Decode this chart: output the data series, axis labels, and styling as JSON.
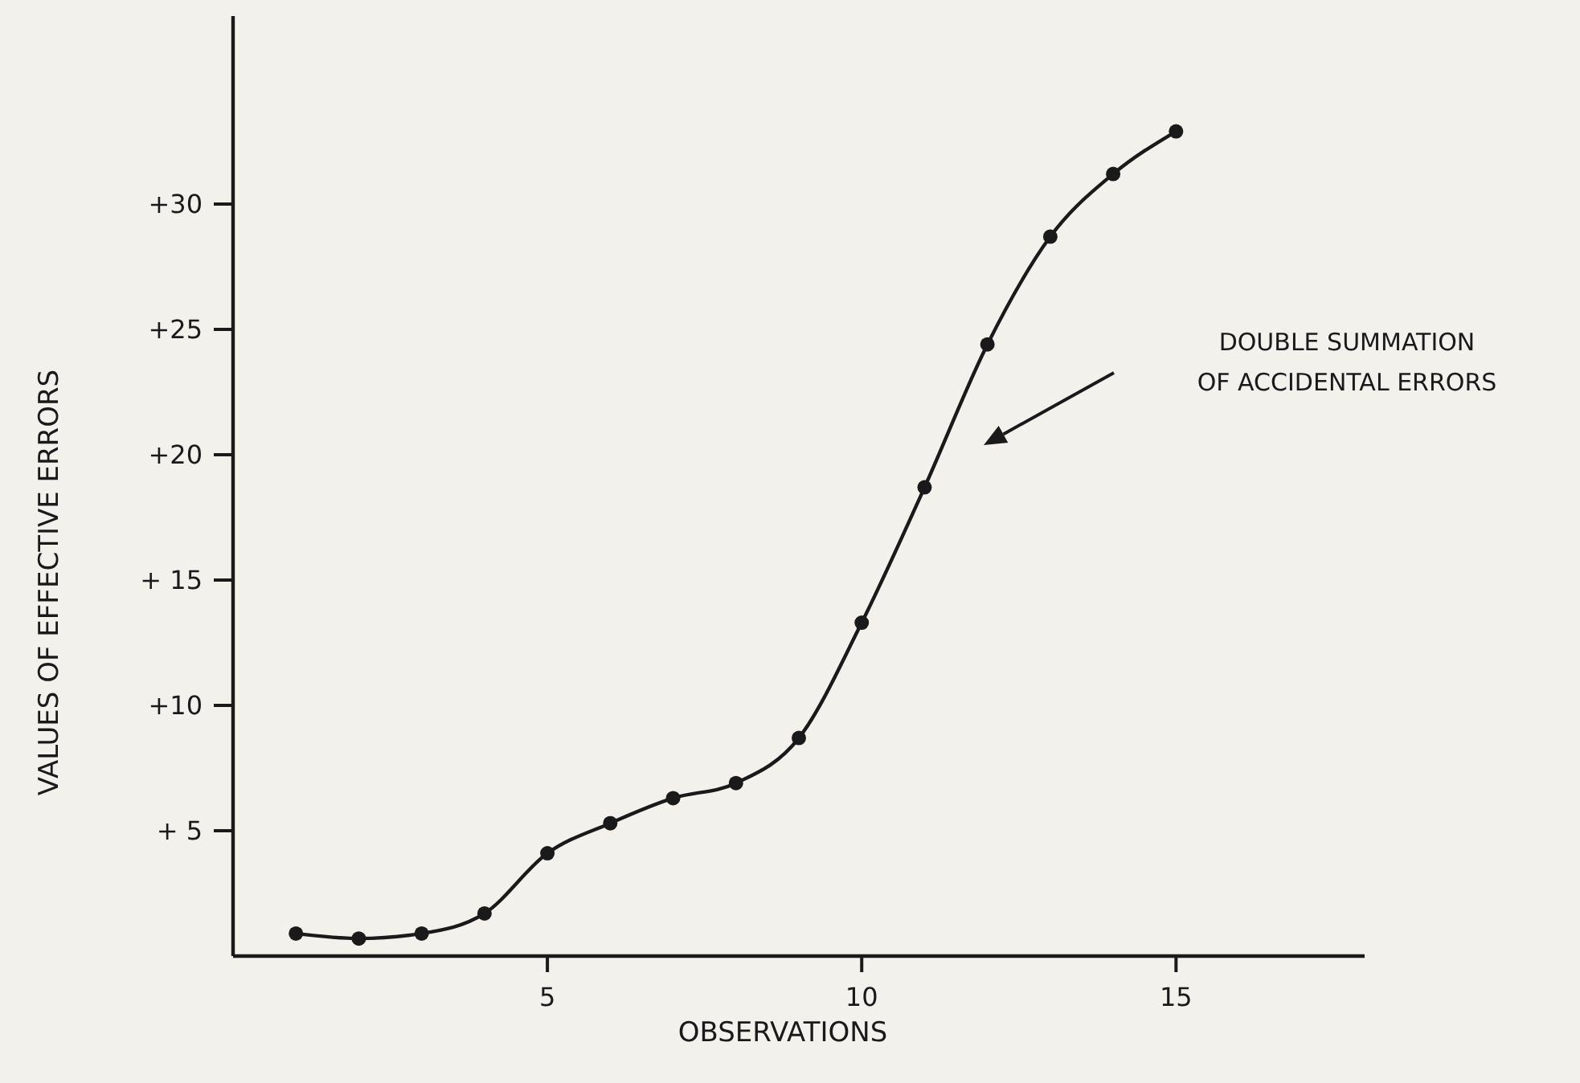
{
  "chart_data": {
    "type": "line",
    "xlabel": "OBSERVATIONS",
    "ylabel": "VALUES OF EFFECTIVE ERRORS",
    "x": [
      1,
      2,
      3,
      4,
      5,
      6,
      7,
      8,
      9,
      10,
      11,
      12,
      13,
      14,
      15
    ],
    "series": [
      {
        "color": "#1a1a1a",
        "values": [
          0.9,
          0.7,
          0.9,
          1.7,
          4.1,
          5.3,
          6.3,
          6.9,
          8.7,
          13.3,
          18.7,
          24.4,
          28.7,
          31.2,
          32.9
        ]
      }
    ],
    "xlim": [
      0,
      18
    ],
    "xticks": [
      5,
      10,
      15
    ],
    "ylim": [
      0,
      37.5
    ],
    "yticks": [
      {
        "value": 5,
        "label": "+ 5"
      },
      {
        "value": 10,
        "label": "+10"
      },
      {
        "value": 15,
        "label": "+ 15"
      },
      {
        "value": 20,
        "label": "+20"
      },
      {
        "value": 25,
        "label": "+25"
      },
      {
        "value": 30,
        "label": "+30"
      }
    ],
    "marker": "circle",
    "line_style": "solid",
    "grid": false,
    "annotations": [
      "DOUBLE SUMMATION\nOF ACCIDENTAL ERRORS"
    ]
  }
}
